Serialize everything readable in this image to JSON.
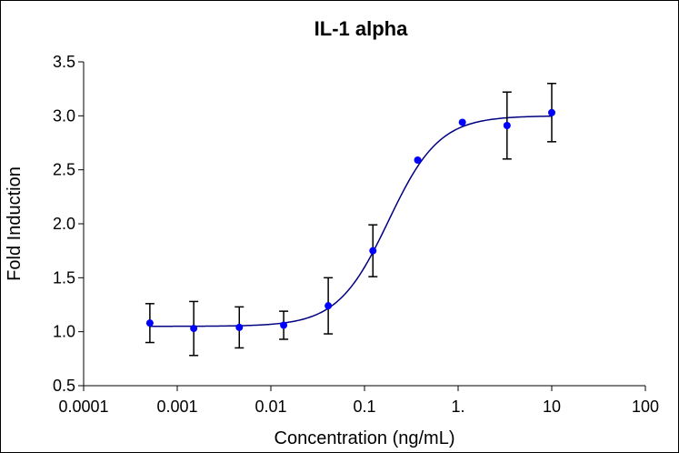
{
  "chart_data": {
    "type": "scatter",
    "title": "IL-1 alpha",
    "xlabel": "Concentration (ng/mL)",
    "ylabel": "Fold Induction",
    "x_scale": "log",
    "xlim": [
      0.0001,
      100
    ],
    "ylim": [
      0.5,
      3.5
    ],
    "x_ticks": [
      0.0001,
      0.001,
      0.01,
      0.1,
      1,
      10,
      100
    ],
    "x_tick_labels": [
      "0.0001",
      "0.001",
      "0.01",
      "0.1",
      "1.",
      "10",
      "100"
    ],
    "y_ticks": [
      0.5,
      1.0,
      1.5,
      2.0,
      2.5,
      3.0,
      3.5
    ],
    "y_tick_labels": [
      "0.5",
      "1.0",
      "1.5",
      "2.0",
      "2.5",
      "3.0",
      "3.5"
    ],
    "grid": false,
    "legend": "none",
    "series": [
      {
        "points": [
          {
            "x": 0.00051,
            "y": 1.08,
            "err": 0.18
          },
          {
            "x": 0.0015,
            "y": 1.03,
            "err": 0.25
          },
          {
            "x": 0.0046,
            "y": 1.04,
            "err": 0.19
          },
          {
            "x": 0.0137,
            "y": 1.06,
            "err": 0.13
          },
          {
            "x": 0.041,
            "y": 1.24,
            "err": 0.26
          },
          {
            "x": 0.123,
            "y": 1.75,
            "err": 0.24
          },
          {
            "x": 0.37,
            "y": 2.59,
            "err": 0
          },
          {
            "x": 1.11,
            "y": 2.94,
            "err": 0
          },
          {
            "x": 3.33,
            "y": 2.91,
            "err": 0.31
          },
          {
            "x": 10,
            "y": 3.03,
            "err": 0.27
          }
        ],
        "marker_color": "#0000ff",
        "error_color": "#000000"
      }
    ],
    "fit": {
      "model": "4PL",
      "bottom": 1.05,
      "top": 3.0,
      "ec50": 0.18,
      "hill": 1.6,
      "color": "#000080"
    }
  }
}
